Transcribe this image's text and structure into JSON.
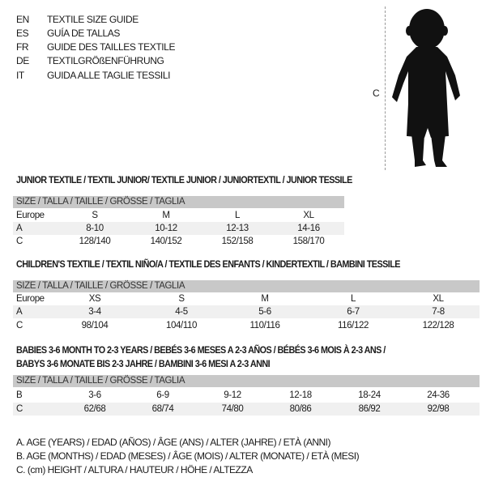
{
  "header": {
    "lines": [
      {
        "code": "EN",
        "title": "TEXTILE SIZE GUIDE"
      },
      {
        "code": "ES",
        "title": "GUÍA DE TALLAS"
      },
      {
        "code": "FR",
        "title": "GUIDE DES TAILLES TEXTILE"
      },
      {
        "code": "DE",
        "title": "TEXTILGRÖßENFÜHRUNG"
      },
      {
        "code": "IT",
        "title": "GUIDA ALLE TAGLIE TESSILI"
      }
    ]
  },
  "figure": {
    "height_label": "C",
    "icon": "baby-silhouette-icon"
  },
  "tables": [
    {
      "title": "JUNIOR TEXTILE / TEXTIL JUNIOR/ TEXTILE JUNIOR / JUNIORTEXTIL / JUNIOR TESSILE",
      "header": "SIZE / TALLA / TAILLE / GRÖSSE / TAGLIA",
      "rows": [
        {
          "label": "Europe",
          "cells": [
            "S",
            "M",
            "L",
            "XL"
          ]
        },
        {
          "label": "A",
          "cells": [
            "8-10",
            "10-12",
            "12-13",
            "14-16"
          ]
        },
        {
          "label": "C",
          "cells": [
            "128/140",
            "140/152",
            "152/158",
            "158/170"
          ]
        }
      ]
    },
    {
      "title": "CHILDREN'S TEXTILE / TEXTIL NIÑO/A / TEXTILE DES ENFANTS / KINDERTEXTIL / BAMBINI TESSILE",
      "header": "SIZE / TALLA / TAILLE / GRÖSSE / TAGLIA",
      "rows": [
        {
          "label": "Europe",
          "cells": [
            "XS",
            "S",
            "M",
            "L",
            "XL"
          ]
        },
        {
          "label": "A",
          "cells": [
            "3-4",
            "4-5",
            "5-6",
            "6-7",
            "7-8"
          ]
        },
        {
          "label": "C",
          "cells": [
            "98/104",
            "104/110",
            "110/116",
            "116/122",
            "122/128"
          ]
        }
      ]
    },
    {
      "title": "BABIES 3-6 MONTH TO 2-3 YEARS / BEBÉS 3-6 MESES A 2-3 AÑOS / BÉBÉS 3-6 MOIS À 2-3 ANS /",
      "title2": "BABYS 3-6 MONATE BIS 2-3 JAHRE / BAMBINI 3-6 MESI A 2-3 ANNI",
      "header": "SIZE / TALLA / TAILLE / GRÖSSE / TAGLIA",
      "rows": [
        {
          "label": "B",
          "cells": [
            "3-6",
            "6-9",
            "9-12",
            "12-18",
            "18-24",
            "24-36"
          ]
        },
        {
          "label": "C",
          "cells": [
            "62/68",
            "68/74",
            "74/80",
            "80/86",
            "86/92",
            "92/98"
          ]
        }
      ]
    }
  ],
  "legend": [
    "A. AGE (YEARS) / EDAD (AÑOS) / ÂGE (ANS) / ALTER (JAHRE) / ETÀ (ANNI)",
    "B. AGE (MONTHS) / EDAD (MESES) / ÂGE (MOIS) / ALTER (MONATE) / ETÀ (MESI)",
    "C. (cm) HEIGHT / ALTURA / HAUTEUR / HÖHE / ALTEZZA"
  ]
}
